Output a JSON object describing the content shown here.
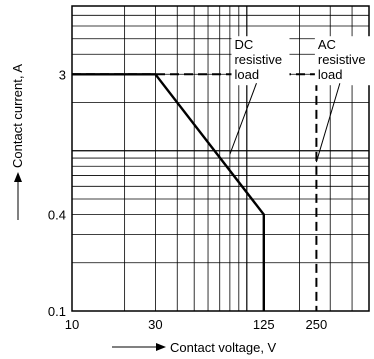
{
  "chart_data": {
    "type": "line",
    "title": "",
    "xlabel": "Contact voltage, V",
    "ylabel": "Contact current, A",
    "x_scale": "log",
    "y_scale": "log",
    "xlim": [
      10,
      500
    ],
    "ylim": [
      0.1,
      8
    ],
    "x_ticks": [
      {
        "value": 10,
        "label": "10"
      },
      {
        "value": 30,
        "label": "30"
      },
      {
        "value": 125,
        "label": "125"
      },
      {
        "value": 250,
        "label": "250"
      }
    ],
    "y_ticks": [
      {
        "value": 0.1,
        "label": "0.1"
      },
      {
        "value": 0.4,
        "label": "0.4"
      },
      {
        "value": 3,
        "label": "3"
      }
    ],
    "grid": true,
    "series": [
      {
        "name": "DC resistive load",
        "style": "solid",
        "points": [
          [
            10,
            3
          ],
          [
            30,
            3
          ],
          [
            125,
            0.4
          ],
          [
            125,
            0.1
          ]
        ]
      },
      {
        "name": "AC resistive load",
        "style": "dashed",
        "points": [
          [
            10,
            3
          ],
          [
            250,
            3
          ],
          [
            250,
            0.1
          ]
        ]
      }
    ],
    "annotations": [
      {
        "lines": [
          "DC",
          "resistive",
          "load"
        ],
        "series": "DC resistive load",
        "anchor": [
          85,
          4.3
        ],
        "target": [
          80,
          0.95
        ]
      },
      {
        "lines": [
          "AC",
          "resistive",
          "load"
        ],
        "series": "AC resistive load",
        "anchor": [
          255,
          4.3
        ],
        "target": [
          250,
          0.85
        ]
      }
    ]
  }
}
